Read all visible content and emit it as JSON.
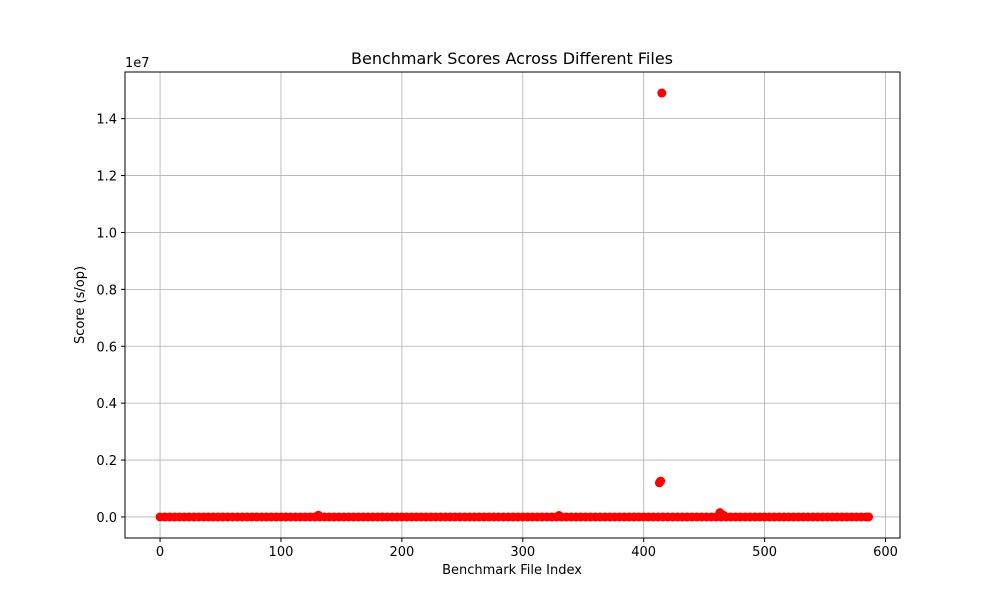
{
  "chart_data": {
    "type": "scatter",
    "title": "Benchmark Scores Across Different Files",
    "xlabel": "Benchmark File Index",
    "ylabel": "Score (s/op)",
    "y_offset_label": "1e7",
    "xlim": [
      -29,
      612
    ],
    "ylim": [
      -740000,
      15640000
    ],
    "x_ticks": [
      0,
      100,
      200,
      300,
      400,
      500,
      600
    ],
    "x_tick_labels": [
      "0",
      "100",
      "200",
      "300",
      "400",
      "500",
      "600"
    ],
    "y_ticks": [
      0,
      2000000,
      4000000,
      6000000,
      8000000,
      10000000,
      12000000,
      14000000
    ],
    "y_tick_labels": [
      "0.0",
      "0.2",
      "0.4",
      "0.6",
      "0.8",
      "1.0",
      "1.2",
      "1.4"
    ],
    "grid": true,
    "marker_color": "#ff0000",
    "baseline": {
      "x_start": 0,
      "x_end": 586,
      "y": 0
    },
    "points": [
      {
        "x": 131,
        "y": 60000
      },
      {
        "x": 330,
        "y": 50000
      },
      {
        "x": 413,
        "y": 1200000
      },
      {
        "x": 414,
        "y": 1260000
      },
      {
        "x": 415,
        "y": 14900000
      },
      {
        "x": 463,
        "y": 150000
      },
      {
        "x": 466,
        "y": 60000
      }
    ]
  }
}
